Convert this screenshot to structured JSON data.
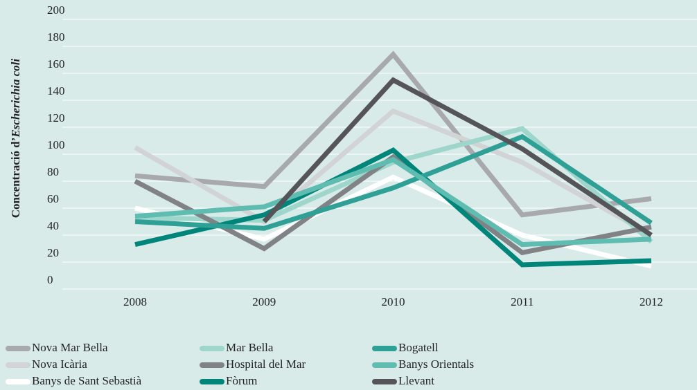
{
  "chart_data": {
    "type": "line",
    "ylabel": [
      "Concentració d’",
      "Escherichia coli"
    ],
    "categories": [
      "2008",
      "2009",
      "2010",
      "2011",
      "2012"
    ],
    "ylim": [
      0,
      200
    ],
    "yticks": [
      0,
      20,
      40,
      60,
      80,
      100,
      120,
      140,
      160,
      180,
      200
    ],
    "grid": true,
    "series": [
      {
        "name": "Nova Mar Bella",
        "color": "#a7a9ac",
        "values": [
          84,
          76,
          174,
          55,
          67
        ]
      },
      {
        "name": "Nova Icària",
        "color": "#d1d3d4",
        "values": [
          105,
          50,
          132,
          94,
          40
        ]
      },
      {
        "name": "Banys de Sant Sebastià",
        "color": "#ffffff",
        "values": [
          60,
          37,
          83,
          40,
          17
        ]
      },
      {
        "name": "Mar Bella",
        "color": "#9fd6cc",
        "values": [
          53,
          51,
          94,
          119,
          35
        ]
      },
      {
        "name": "Hospital del Mar",
        "color": "#808285",
        "values": [
          80,
          30,
          98,
          27,
          46
        ]
      },
      {
        "name": "Fòrum",
        "color": "#00857a",
        "values": [
          33,
          55,
          103,
          18,
          21
        ]
      },
      {
        "name": "Bogatell",
        "color": "#2fa096",
        "values": [
          50,
          45,
          75,
          113,
          49
        ]
      },
      {
        "name": "Banys Orientals",
        "color": "#5fbcb0",
        "values": [
          54,
          61,
          96,
          33,
          37
        ]
      },
      {
        "name": "Llevant",
        "color": "#555559",
        "values": [
          null,
          50,
          155,
          104,
          40
        ]
      }
    ]
  }
}
